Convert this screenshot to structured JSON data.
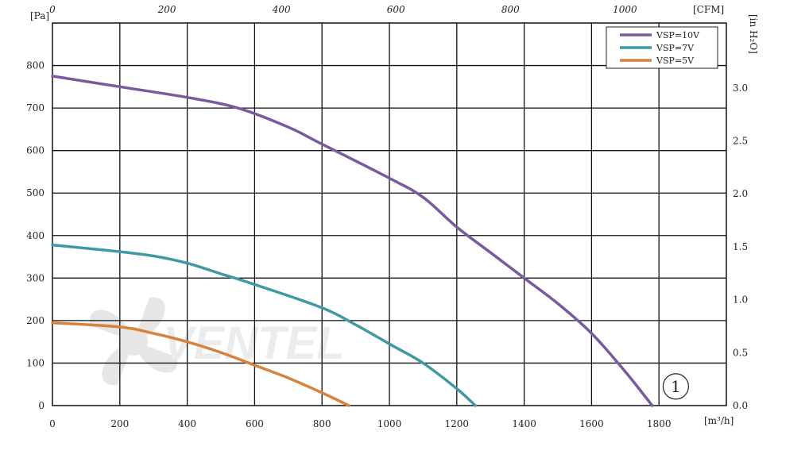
{
  "chart_data": {
    "type": "line",
    "title": "",
    "x": {
      "unit_label": "[m³/h]",
      "range": [
        0,
        2000
      ],
      "ticks": [
        0,
        200,
        400,
        600,
        800,
        1000,
        1200,
        1400,
        1600,
        1800
      ],
      "tick_labels": [
        "0",
        "200",
        "400",
        "600",
        "800",
        "1000",
        "1200",
        "1400",
        "1600",
        "1800"
      ]
    },
    "x_top": {
      "unit_label": "[CFM]",
      "ticks": [
        0,
        200,
        400,
        600,
        800,
        1000
      ],
      "tick_labels": [
        "0",
        "200",
        "400",
        "600",
        "800",
        "1000"
      ]
    },
    "y": {
      "unit_label": "[Pa]",
      "range": [
        0,
        900
      ],
      "ticks": [
        0,
        100,
        200,
        300,
        400,
        500,
        600,
        700,
        800
      ],
      "tick_labels": [
        "0",
        "100",
        "200",
        "300",
        "400",
        "500",
        "600",
        "700",
        "800"
      ]
    },
    "y_right": {
      "unit_label": "[in H₂O]",
      "ticks": [
        0,
        0.5,
        1.0,
        1.5,
        2.0,
        2.5,
        3.0
      ],
      "tick_labels": [
        "0.0",
        "0.5",
        "1.0",
        "1.5",
        "2.0",
        "2.5",
        "3.0"
      ]
    },
    "grid": true,
    "legend_position": "top-right",
    "series": [
      {
        "name": "VSP=10V",
        "color": "#7a5a9e",
        "points": [
          [
            0,
            775
          ],
          [
            200,
            750
          ],
          [
            400,
            725
          ],
          [
            550,
            700
          ],
          [
            700,
            655
          ],
          [
            800,
            615
          ],
          [
            1000,
            535
          ],
          [
            1100,
            490
          ],
          [
            1200,
            420
          ],
          [
            1300,
            360
          ],
          [
            1400,
            300
          ],
          [
            1500,
            240
          ],
          [
            1600,
            170
          ],
          [
            1700,
            80
          ],
          [
            1780,
            0
          ]
        ]
      },
      {
        "name": "VSP=7V",
        "color": "#3f9aa3",
        "points": [
          [
            0,
            378
          ],
          [
            200,
            362
          ],
          [
            300,
            352
          ],
          [
            400,
            335
          ],
          [
            500,
            310
          ],
          [
            600,
            285
          ],
          [
            800,
            230
          ],
          [
            900,
            190
          ],
          [
            1000,
            145
          ],
          [
            1100,
            100
          ],
          [
            1200,
            40
          ],
          [
            1255,
            0
          ]
        ]
      },
      {
        "name": "VSP=5V",
        "color": "#d9823b",
        "points": [
          [
            0,
            195
          ],
          [
            200,
            185
          ],
          [
            300,
            170
          ],
          [
            400,
            150
          ],
          [
            500,
            125
          ],
          [
            600,
            95
          ],
          [
            700,
            65
          ],
          [
            800,
            30
          ],
          [
            880,
            0
          ]
        ]
      }
    ],
    "annotations": [
      {
        "text": "1",
        "shape": "circle",
        "x": 1850,
        "y": 45
      }
    ],
    "watermark": {
      "text": "VENTEL"
    }
  }
}
